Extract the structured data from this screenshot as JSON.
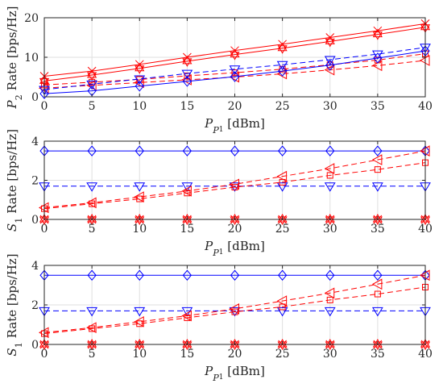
{
  "chart_data": [
    {
      "type": "line",
      "ylabel": "P_2 Rate [bps/Hz]",
      "xlabel": "P_P1 [dBm]",
      "ylim": [
        0,
        20
      ],
      "yticks": [
        0,
        10,
        20
      ],
      "xlim": [
        0,
        40
      ],
      "xticks": [
        0,
        5,
        10,
        15,
        20,
        25,
        30,
        35,
        40
      ],
      "grid": true,
      "series": [
        {
          "color": "#ff0000",
          "dash": "solid",
          "marker": "x",
          "x": [
            0,
            5,
            10,
            15,
            20,
            25,
            30,
            35,
            40
          ],
          "y": [
            5.2,
            6.5,
            8.2,
            10.0,
            11.7,
            13.3,
            15.0,
            16.7,
            18.5
          ]
        },
        {
          "color": "#ff0000",
          "dash": "solid",
          "marker": "hexagram",
          "x": [
            0,
            5,
            10,
            15,
            20,
            25,
            30,
            35,
            40
          ],
          "y": [
            4.0,
            5.5,
            7.2,
            9.0,
            10.7,
            12.3,
            14.0,
            15.8,
            17.6
          ]
        },
        {
          "color": "#ff0000",
          "dash": "dashed",
          "marker": "square",
          "x": [
            0,
            5,
            10,
            15,
            20,
            25,
            30,
            35,
            40
          ],
          "y": [
            3.0,
            3.7,
            4.4,
            5.3,
            6.1,
            7.0,
            8.1,
            9.3,
            10.9
          ]
        },
        {
          "color": "#ff0000",
          "dash": "dashed",
          "marker": "triangle-left",
          "x": [
            0,
            5,
            10,
            15,
            20,
            25,
            30,
            35,
            40
          ],
          "y": [
            2.2,
            2.9,
            3.6,
            4.3,
            5.0,
            5.8,
            6.8,
            7.9,
            9.2
          ]
        },
        {
          "color": "#0000ff",
          "dash": "dashed",
          "marker": "triangle-down",
          "x": [
            0,
            5,
            10,
            15,
            20,
            25,
            30,
            35,
            40
          ],
          "y": [
            1.8,
            3.2,
            4.5,
            5.9,
            7.0,
            8.1,
            9.4,
            10.8,
            12.5
          ]
        },
        {
          "color": "#0000ff",
          "dash": "solid",
          "marker": "diamond",
          "x": [
            0,
            5,
            10,
            15,
            20,
            25,
            30,
            35,
            40
          ],
          "y": [
            0.8,
            1.5,
            2.7,
            3.9,
            5.1,
            6.5,
            8.0,
            9.8,
            11.6
          ]
        }
      ]
    },
    {
      "type": "line",
      "ylabel": "S_1 Rate [bps/Hz]",
      "xlabel": "P_P1 [dBm]",
      "ylim": [
        0,
        4
      ],
      "yticks": [
        0,
        2,
        4
      ],
      "xlim": [
        0,
        40
      ],
      "xticks": [
        0,
        5,
        10,
        15,
        20,
        25,
        30,
        35,
        40
      ],
      "grid": true,
      "series": [
        {
          "color": "#0000ff",
          "dash": "solid",
          "marker": "diamond",
          "x": [
            0,
            5,
            10,
            15,
            20,
            25,
            30,
            35,
            40
          ],
          "y": [
            3.5,
            3.5,
            3.5,
            3.5,
            3.5,
            3.5,
            3.5,
            3.5,
            3.5
          ]
        },
        {
          "color": "#0000ff",
          "dash": "dashed",
          "marker": "triangle-down",
          "x": [
            0,
            5,
            10,
            15,
            20,
            25,
            30,
            35,
            40
          ],
          "y": [
            1.7,
            1.7,
            1.7,
            1.7,
            1.7,
            1.7,
            1.7,
            1.7,
            1.7
          ]
        },
        {
          "color": "#ff0000",
          "dash": "dashed",
          "marker": "triangle-left",
          "x": [
            0,
            5,
            10,
            15,
            20,
            25,
            30,
            35,
            40
          ],
          "y": [
            0.6,
            0.85,
            1.15,
            1.45,
            1.8,
            2.2,
            2.6,
            3.05,
            3.5
          ]
        },
        {
          "color": "#ff0000",
          "dash": "dashed",
          "marker": "square",
          "x": [
            0,
            5,
            10,
            15,
            20,
            25,
            30,
            35,
            40
          ],
          "y": [
            0.55,
            0.8,
            1.05,
            1.35,
            1.65,
            1.9,
            2.25,
            2.55,
            2.9
          ]
        },
        {
          "color": "#ff0000",
          "dash": "solid",
          "marker": "x",
          "x": [
            0,
            5,
            10,
            15,
            20,
            25,
            30,
            35,
            40
          ],
          "y": [
            0,
            0,
            0,
            0,
            0,
            0,
            0,
            0,
            0
          ]
        },
        {
          "color": "#ff0000",
          "dash": "solid",
          "marker": "hexagram",
          "x": [
            0,
            5,
            10,
            15,
            20,
            25,
            30,
            35,
            40
          ],
          "y": [
            0,
            0,
            0,
            0,
            0,
            0,
            0,
            0,
            0
          ]
        }
      ]
    },
    {
      "type": "line",
      "ylabel": "S_1 Rate [bps/Hz]",
      "xlabel": "P_P1 [dBm]",
      "ylim": [
        0,
        4
      ],
      "yticks": [
        0,
        2,
        4
      ],
      "xlim": [
        0,
        40
      ],
      "xticks": [
        0,
        5,
        10,
        15,
        20,
        25,
        30,
        35,
        40
      ],
      "grid": true,
      "series": [
        {
          "color": "#0000ff",
          "dash": "solid",
          "marker": "diamond",
          "x": [
            0,
            5,
            10,
            15,
            20,
            25,
            30,
            35,
            40
          ],
          "y": [
            3.5,
            3.5,
            3.5,
            3.5,
            3.5,
            3.5,
            3.5,
            3.5,
            3.5
          ]
        },
        {
          "color": "#0000ff",
          "dash": "dashed",
          "marker": "triangle-down",
          "x": [
            0,
            5,
            10,
            15,
            20,
            25,
            30,
            35,
            40
          ],
          "y": [
            1.7,
            1.7,
            1.7,
            1.7,
            1.7,
            1.7,
            1.7,
            1.7,
            1.7
          ]
        },
        {
          "color": "#ff0000",
          "dash": "dashed",
          "marker": "triangle-left",
          "x": [
            0,
            5,
            10,
            15,
            20,
            25,
            30,
            35,
            40
          ],
          "y": [
            0.6,
            0.85,
            1.15,
            1.45,
            1.8,
            2.2,
            2.6,
            3.05,
            3.5
          ]
        },
        {
          "color": "#ff0000",
          "dash": "dashed",
          "marker": "square",
          "x": [
            0,
            5,
            10,
            15,
            20,
            25,
            30,
            35,
            40
          ],
          "y": [
            0.55,
            0.8,
            1.05,
            1.35,
            1.65,
            1.9,
            2.25,
            2.55,
            2.9
          ]
        },
        {
          "color": "#ff0000",
          "dash": "solid",
          "marker": "x",
          "x": [
            0,
            5,
            10,
            15,
            20,
            25,
            30,
            35,
            40
          ],
          "y": [
            0,
            0,
            0,
            0,
            0,
            0,
            0,
            0,
            0
          ]
        },
        {
          "color": "#ff0000",
          "dash": "solid",
          "marker": "hexagram",
          "x": [
            0,
            5,
            10,
            15,
            20,
            25,
            30,
            35,
            40
          ],
          "y": [
            0,
            0,
            0,
            0,
            0,
            0,
            0,
            0,
            0
          ]
        }
      ]
    }
  ]
}
